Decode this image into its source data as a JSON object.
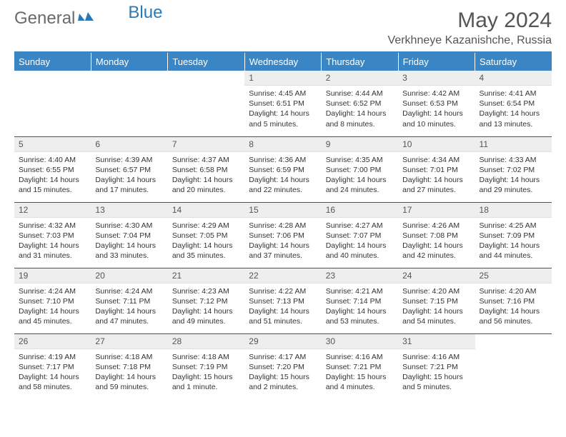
{
  "logo": {
    "part1": "General",
    "part2": "Blue"
  },
  "header": {
    "month_title": "May 2024",
    "location": "Verkhneye Kazanishche, Russia"
  },
  "colors": {
    "accent": "#3a86c4",
    "daybar": "#eeeeee",
    "text": "#333333",
    "rowline": "#2a5a88"
  },
  "weekdays": [
    "Sunday",
    "Monday",
    "Tuesday",
    "Wednesday",
    "Thursday",
    "Friday",
    "Saturday"
  ],
  "weeks": [
    [
      null,
      null,
      null,
      {
        "n": "1",
        "sr": "Sunrise: 4:45 AM",
        "ss": "Sunset: 6:51 PM",
        "d1": "Daylight: 14 hours",
        "d2": "and 5 minutes."
      },
      {
        "n": "2",
        "sr": "Sunrise: 4:44 AM",
        "ss": "Sunset: 6:52 PM",
        "d1": "Daylight: 14 hours",
        "d2": "and 8 minutes."
      },
      {
        "n": "3",
        "sr": "Sunrise: 4:42 AM",
        "ss": "Sunset: 6:53 PM",
        "d1": "Daylight: 14 hours",
        "d2": "and 10 minutes."
      },
      {
        "n": "4",
        "sr": "Sunrise: 4:41 AM",
        "ss": "Sunset: 6:54 PM",
        "d1": "Daylight: 14 hours",
        "d2": "and 13 minutes."
      }
    ],
    [
      {
        "n": "5",
        "sr": "Sunrise: 4:40 AM",
        "ss": "Sunset: 6:55 PM",
        "d1": "Daylight: 14 hours",
        "d2": "and 15 minutes."
      },
      {
        "n": "6",
        "sr": "Sunrise: 4:39 AM",
        "ss": "Sunset: 6:57 PM",
        "d1": "Daylight: 14 hours",
        "d2": "and 17 minutes."
      },
      {
        "n": "7",
        "sr": "Sunrise: 4:37 AM",
        "ss": "Sunset: 6:58 PM",
        "d1": "Daylight: 14 hours",
        "d2": "and 20 minutes."
      },
      {
        "n": "8",
        "sr": "Sunrise: 4:36 AM",
        "ss": "Sunset: 6:59 PM",
        "d1": "Daylight: 14 hours",
        "d2": "and 22 minutes."
      },
      {
        "n": "9",
        "sr": "Sunrise: 4:35 AM",
        "ss": "Sunset: 7:00 PM",
        "d1": "Daylight: 14 hours",
        "d2": "and 24 minutes."
      },
      {
        "n": "10",
        "sr": "Sunrise: 4:34 AM",
        "ss": "Sunset: 7:01 PM",
        "d1": "Daylight: 14 hours",
        "d2": "and 27 minutes."
      },
      {
        "n": "11",
        "sr": "Sunrise: 4:33 AM",
        "ss": "Sunset: 7:02 PM",
        "d1": "Daylight: 14 hours",
        "d2": "and 29 minutes."
      }
    ],
    [
      {
        "n": "12",
        "sr": "Sunrise: 4:32 AM",
        "ss": "Sunset: 7:03 PM",
        "d1": "Daylight: 14 hours",
        "d2": "and 31 minutes."
      },
      {
        "n": "13",
        "sr": "Sunrise: 4:30 AM",
        "ss": "Sunset: 7:04 PM",
        "d1": "Daylight: 14 hours",
        "d2": "and 33 minutes."
      },
      {
        "n": "14",
        "sr": "Sunrise: 4:29 AM",
        "ss": "Sunset: 7:05 PM",
        "d1": "Daylight: 14 hours",
        "d2": "and 35 minutes."
      },
      {
        "n": "15",
        "sr": "Sunrise: 4:28 AM",
        "ss": "Sunset: 7:06 PM",
        "d1": "Daylight: 14 hours",
        "d2": "and 37 minutes."
      },
      {
        "n": "16",
        "sr": "Sunrise: 4:27 AM",
        "ss": "Sunset: 7:07 PM",
        "d1": "Daylight: 14 hours",
        "d2": "and 40 minutes."
      },
      {
        "n": "17",
        "sr": "Sunrise: 4:26 AM",
        "ss": "Sunset: 7:08 PM",
        "d1": "Daylight: 14 hours",
        "d2": "and 42 minutes."
      },
      {
        "n": "18",
        "sr": "Sunrise: 4:25 AM",
        "ss": "Sunset: 7:09 PM",
        "d1": "Daylight: 14 hours",
        "d2": "and 44 minutes."
      }
    ],
    [
      {
        "n": "19",
        "sr": "Sunrise: 4:24 AM",
        "ss": "Sunset: 7:10 PM",
        "d1": "Daylight: 14 hours",
        "d2": "and 45 minutes."
      },
      {
        "n": "20",
        "sr": "Sunrise: 4:24 AM",
        "ss": "Sunset: 7:11 PM",
        "d1": "Daylight: 14 hours",
        "d2": "and 47 minutes."
      },
      {
        "n": "21",
        "sr": "Sunrise: 4:23 AM",
        "ss": "Sunset: 7:12 PM",
        "d1": "Daylight: 14 hours",
        "d2": "and 49 minutes."
      },
      {
        "n": "22",
        "sr": "Sunrise: 4:22 AM",
        "ss": "Sunset: 7:13 PM",
        "d1": "Daylight: 14 hours",
        "d2": "and 51 minutes."
      },
      {
        "n": "23",
        "sr": "Sunrise: 4:21 AM",
        "ss": "Sunset: 7:14 PM",
        "d1": "Daylight: 14 hours",
        "d2": "and 53 minutes."
      },
      {
        "n": "24",
        "sr": "Sunrise: 4:20 AM",
        "ss": "Sunset: 7:15 PM",
        "d1": "Daylight: 14 hours",
        "d2": "and 54 minutes."
      },
      {
        "n": "25",
        "sr": "Sunrise: 4:20 AM",
        "ss": "Sunset: 7:16 PM",
        "d1": "Daylight: 14 hours",
        "d2": "and 56 minutes."
      }
    ],
    [
      {
        "n": "26",
        "sr": "Sunrise: 4:19 AM",
        "ss": "Sunset: 7:17 PM",
        "d1": "Daylight: 14 hours",
        "d2": "and 58 minutes."
      },
      {
        "n": "27",
        "sr": "Sunrise: 4:18 AM",
        "ss": "Sunset: 7:18 PM",
        "d1": "Daylight: 14 hours",
        "d2": "and 59 minutes."
      },
      {
        "n": "28",
        "sr": "Sunrise: 4:18 AM",
        "ss": "Sunset: 7:19 PM",
        "d1": "Daylight: 15 hours",
        "d2": "and 1 minute."
      },
      {
        "n": "29",
        "sr": "Sunrise: 4:17 AM",
        "ss": "Sunset: 7:20 PM",
        "d1": "Daylight: 15 hours",
        "d2": "and 2 minutes."
      },
      {
        "n": "30",
        "sr": "Sunrise: 4:16 AM",
        "ss": "Sunset: 7:21 PM",
        "d1": "Daylight: 15 hours",
        "d2": "and 4 minutes."
      },
      {
        "n": "31",
        "sr": "Sunrise: 4:16 AM",
        "ss": "Sunset: 7:21 PM",
        "d1": "Daylight: 15 hours",
        "d2": "and 5 minutes."
      },
      null
    ]
  ]
}
